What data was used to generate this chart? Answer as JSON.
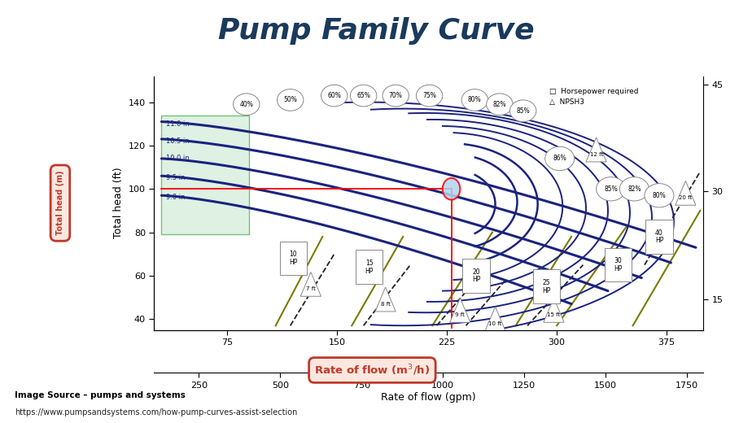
{
  "title": "Pump Family Curve",
  "title_color": "#1a3a5c",
  "title_fontsize": 26,
  "bg_color": "#ffffff",
  "xlim": [
    25,
    400
  ],
  "ylim": [
    35,
    152
  ],
  "xticks": [
    75,
    150,
    225,
    300,
    375
  ],
  "yticks_left": [
    40,
    60,
    80,
    100,
    120,
    140
  ],
  "yticks_right": [
    15,
    30,
    45
  ],
  "yticks_right_pos": [
    49,
    99,
    148
  ],
  "gpm_ticks_pos": [
    55.6,
    111.1,
    166.7,
    222.2,
    277.8,
    333.3,
    388.9
  ],
  "gpm_ticks_labels": [
    "250",
    "500",
    "750",
    "1000",
    "1250",
    "1500",
    "1750"
  ],
  "footnote1": "Image Source – pumps and systems",
  "footnote2": "https://www.pumpsandsystems.com/how-pump-curves-assist-selection",
  "impeller_labels": [
    "11.0 in",
    "10.5 in",
    "10.0 in",
    "9.5 in",
    "9.0 in"
  ],
  "impeller_y": [
    130,
    122,
    114,
    105,
    96
  ],
  "impeller_box_color": "#d4edda",
  "navy": "#1a237e",
  "olive": "#7a7a00",
  "dark_navy": "#000033"
}
